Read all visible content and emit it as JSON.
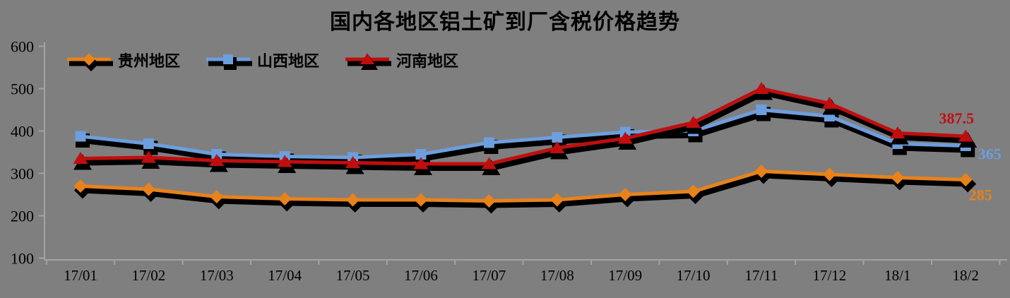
{
  "page": {
    "background": "#7f7f7f",
    "text_color": "#000000",
    "axis_color": "#a3a3a3"
  },
  "chart_data": {
    "type": "line",
    "title": "国内各地区铝土矿到厂含税价格趋势",
    "categories": [
      "17/01",
      "17/02",
      "17/03",
      "17/04",
      "17/05",
      "17/06",
      "17/07",
      "17/08",
      "17/09",
      "17/10",
      "17/11",
      "17/12",
      "18/1",
      "18/2"
    ],
    "series": [
      {
        "name": "贵州地区",
        "marker": "diamond",
        "color": "#E8821B",
        "values": [
          270,
          262.5,
          245,
          240,
          237.5,
          237.5,
          235,
          237.5,
          250,
          257.5,
          305,
          297.5,
          290,
          285
        ],
        "end_label": "285"
      },
      {
        "name": "山西地区",
        "marker": "square",
        "color": "#6D9EDD",
        "values": [
          387.5,
          370,
          345,
          340,
          337.5,
          345,
          372.5,
          385,
          397.5,
          400,
          450,
          435,
          370,
          365
        ],
        "end_label": "365"
      },
      {
        "name": "河南地区",
        "marker": "triangle",
        "color": "#C00E0E",
        "values": [
          335,
          337.5,
          330,
          327.5,
          325,
          322.5,
          322.5,
          360,
          382.5,
          420,
          500,
          465,
          395,
          387.5
        ],
        "end_label": "387.5"
      }
    ],
    "y_axis": {
      "min": 100,
      "max": 600,
      "step": 100,
      "tick_labels": [
        "600",
        "500",
        "400",
        "300",
        "200",
        "100"
      ]
    },
    "x_axis_label_style": "serif",
    "legend_position": "top-left",
    "grid": false,
    "drop_shadow": true,
    "ylim": [
      100,
      600
    ]
  }
}
